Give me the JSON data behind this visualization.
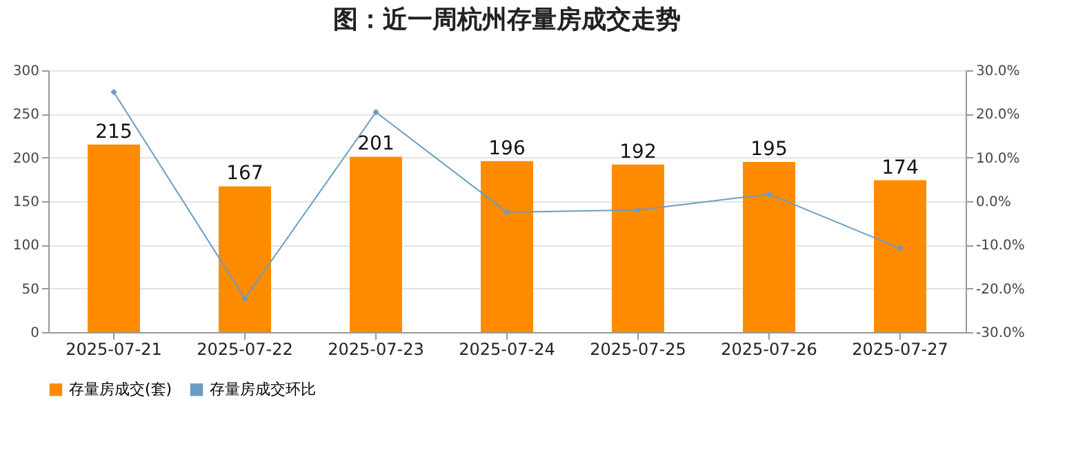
{
  "chart_data": {
    "type": "bar",
    "title": "图：近一周杭州存量房成交走势",
    "categories": [
      "2025-07-21",
      "2025-07-22",
      "2025-07-23",
      "2025-07-24",
      "2025-07-25",
      "2025-07-26",
      "2025-07-27"
    ],
    "series": [
      {
        "name": "存量房成交(套)",
        "color": "#ff8c00",
        "values": [
          215,
          167,
          201,
          196,
          192,
          195,
          174
        ],
        "value_labels": [
          "215",
          "167",
          "201",
          "196",
          "192",
          "195",
          "174"
        ]
      },
      {
        "name": "存量房成交环比",
        "type": "line",
        "axis": "y2",
        "color": "#6a9cc4",
        "values": [
          25,
          -22.3,
          20.4,
          -2.5,
          -2,
          1.6,
          -10.8
        ]
      }
    ],
    "ylim": [
      0,
      300
    ],
    "yticks": [
      0,
      50,
      100,
      150,
      200,
      250,
      300
    ],
    "y2lim": [
      -30,
      30
    ],
    "y2ticks": [
      {
        "value": -30,
        "label": "-30.0%"
      },
      {
        "value": -20,
        "label": "-20.0%"
      },
      {
        "value": -10,
        "label": "-10.0%"
      },
      {
        "value": 0,
        "label": "0.0%"
      },
      {
        "value": 10,
        "label": "10.0%"
      },
      {
        "value": 20,
        "label": "20.0%"
      },
      {
        "value": 30,
        "label": "30.0%"
      }
    ],
    "grid": "y",
    "legend": "bottom",
    "marker": "diamond",
    "line_style": "solid"
  }
}
